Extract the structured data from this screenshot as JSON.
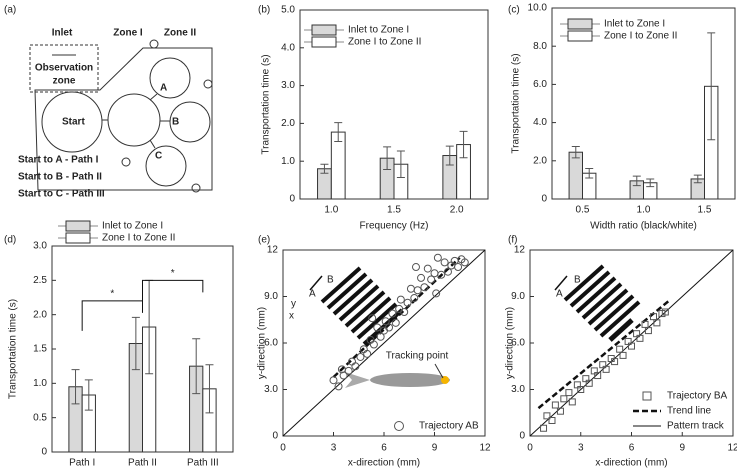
{
  "panel_labels": [
    "(a)",
    "(b)",
    "(c)",
    "(d)",
    "(e)",
    "(f)"
  ],
  "diagram": {
    "zones": [
      "Inlet",
      "Zone I",
      "Zone II"
    ],
    "observation": [
      "Observation",
      "zone"
    ],
    "start": "Start",
    "nodes": [
      "A",
      "B",
      "C"
    ],
    "paths": [
      "Start to A - Path I",
      "Start to B - Path II",
      "Start to C - Path III"
    ]
  },
  "chart_data": [
    {
      "type": "bar",
      "categories": [
        "1.0",
        "1.5",
        "2.0"
      ],
      "x_label": "Frequency (Hz)",
      "y_label": "Transportation time (s)",
      "ylim": [
        0,
        5
      ],
      "yticks": [
        0,
        {
          "value": 1,
          "label": "1.0"
        },
        {
          "value": 2,
          "label": "2.0"
        },
        {
          "value": 3,
          "label": "3.0"
        },
        {
          "value": 4,
          "label": "4.0"
        },
        {
          "value": 5,
          "label": "5.0"
        }
      ],
      "legend": "upper left",
      "series": [
        {
          "name": "Inlet to Zone I",
          "color": "#d9d9d9",
          "values": [
            0.8,
            1.08,
            1.15
          ],
          "errors": [
            0.12,
            0.3,
            0.25
          ]
        },
        {
          "name": "Zone I to Zone II",
          "color": "#ffffff",
          "values": [
            1.77,
            0.92,
            1.44
          ],
          "errors": [
            0.25,
            0.35,
            0.35
          ]
        }
      ]
    },
    {
      "type": "bar",
      "categories": [
        "0.5",
        "1.0",
        "1.5"
      ],
      "x_label": "Width ratio (black/white)",
      "y_label": "Transportation time (s)",
      "ylim": [
        0,
        10
      ],
      "yticks": [
        0,
        {
          "value": 2,
          "label": "2.0"
        },
        {
          "value": 4,
          "label": "4.0"
        },
        {
          "value": 6,
          "label": "6.0"
        },
        {
          "value": 8,
          "label": "8.0"
        },
        {
          "value": 10,
          "label": "10.0"
        }
      ],
      "legend": "upper left",
      "series": [
        {
          "name": "Inlet to Zone I",
          "color": "#d9d9d9",
          "values": [
            2.45,
            0.95,
            1.05
          ],
          "errors": [
            0.3,
            0.25,
            0.2
          ]
        },
        {
          "name": "Zone I to Zone II",
          "color": "#ffffff",
          "values": [
            1.35,
            0.85,
            5.9
          ],
          "errors": [
            0.25,
            0.2,
            2.8
          ]
        }
      ]
    },
    {
      "type": "bar",
      "categories": [
        "Path I",
        "Path II",
        "Path III"
      ],
      "y_label": "Transportation time (s)",
      "ylim": [
        0,
        3
      ],
      "yticks": [
        0,
        0.5,
        {
          "value": 1,
          "label": "1.0"
        },
        1.5,
        {
          "value": 2,
          "label": "2.0"
        },
        2.5,
        {
          "value": 3,
          "label": "3.0"
        }
      ],
      "legend": "top",
      "annotations": [
        "*",
        "*"
      ],
      "series": [
        {
          "name": "Inlet to Zone I",
          "color": "#d9d9d9",
          "values": [
            0.95,
            1.58,
            1.25
          ],
          "errors": [
            0.25,
            0.38,
            0.4
          ]
        },
        {
          "name": "Zone I to Zone II",
          "color": "#ffffff",
          "values": [
            0.83,
            1.82,
            0.92
          ],
          "errors": [
            0.22,
            0.68,
            0.35
          ]
        }
      ]
    },
    {
      "type": "scatter",
      "x_label": "x-direction (mm)",
      "y_label": "y-direction (mm)",
      "xlim": [
        0,
        12
      ],
      "ylim": [
        0,
        12
      ],
      "xticks": [
        0,
        3,
        6,
        9,
        12
      ],
      "yticks": [
        0,
        {
          "value": 3,
          "label": "3.0"
        },
        {
          "value": 6,
          "label": "6.0"
        },
        {
          "value": 9,
          "label": "9.0"
        },
        12
      ],
      "legend": "lower right",
      "annotation": "Tracking point",
      "inset_labels": [
        "A",
        "B",
        "y",
        "x"
      ],
      "series": [
        {
          "name": "Trajectory AB",
          "marker": "circle",
          "color": "#555555",
          "x": [
            3.0,
            3.3,
            3.5,
            3.6,
            3.9,
            4.1,
            4.3,
            4.6,
            4.8,
            5.0,
            5.2,
            5.4,
            5.6,
            5.8,
            6.0,
            6.1,
            6.3,
            6.5,
            6.7,
            6.9,
            7.0,
            7.2,
            7.4,
            7.6,
            7.8,
            8.0,
            8.2,
            8.4,
            8.6,
            8.8,
            9.0,
            9.2,
            9.4,
            9.6,
            9.8,
            10.0,
            10.2,
            10.4,
            10.6,
            10.8,
            5.3,
            7.9,
            9.1
          ],
          "values": [
            3.6,
            3.2,
            4.3,
            3.9,
            4.2,
            4.8,
            4.5,
            5.1,
            5.6,
            5.3,
            6.2,
            5.9,
            7.0,
            6.4,
            6.8,
            7.4,
            7.0,
            7.9,
            7.3,
            8.2,
            8.8,
            8.0,
            8.6,
            9.5,
            8.9,
            9.4,
            10.2,
            9.6,
            10.8,
            10.1,
            10.5,
            11.5,
            10.4,
            11.2,
            10.6,
            11.0,
            11.3,
            10.9,
            11.4,
            11.2,
            7.6,
            10.9,
            9.2
          ]
        }
      ],
      "lines": [
        {
          "style": "dashed",
          "x": [
            3,
            10.5
          ],
          "values": [
            3.8,
            11.5
          ]
        },
        {
          "style": "solid",
          "x": [
            0,
            12
          ],
          "values": [
            0,
            12
          ]
        }
      ]
    },
    {
      "type": "scatter",
      "x_label": "x-direction (mm)",
      "y_label": "y-direction (mm)",
      "xlim": [
        0,
        12
      ],
      "ylim": [
        0,
        12
      ],
      "xticks": [
        0,
        3,
        6,
        9,
        12
      ],
      "yticks": [
        0,
        {
          "value": 3,
          "label": "3.0"
        },
        {
          "value": 6,
          "label": "6.0"
        },
        {
          "value": 9,
          "label": "9.0"
        },
        12
      ],
      "legend": "lower right",
      "inset_labels": [
        "A",
        "B"
      ],
      "series": [
        {
          "name": "Trajectory BA",
          "marker": "square",
          "color": "#555555",
          "x": [
            0.8,
            1.0,
            1.3,
            1.5,
            1.8,
            2.0,
            2.3,
            2.5,
            2.8,
            3.0,
            3.3,
            3.5,
            3.8,
            4.0,
            4.3,
            4.5,
            4.8,
            5.0,
            5.3,
            5.5,
            5.8,
            6.0,
            6.3,
            6.5,
            6.8,
            7.0,
            7.3,
            7.5,
            7.8,
            8.0
          ],
          "values": [
            0.5,
            1.3,
            1.0,
            2.0,
            1.6,
            2.4,
            2.8,
            2.2,
            3.3,
            3.0,
            3.7,
            3.4,
            4.2,
            3.9,
            4.6,
            4.3,
            5.0,
            4.8,
            5.6,
            5.2,
            6.1,
            5.8,
            6.6,
            6.3,
            7.2,
            6.8,
            7.7,
            7.3,
            7.9,
            8.0
          ]
        }
      ],
      "lines": [
        {
          "name": "Trend line",
          "style": "dashed",
          "x": [
            0.5,
            8.3
          ],
          "values": [
            1.8,
            8.8
          ]
        },
        {
          "name": "Pattern track",
          "style": "solid",
          "x": [
            0,
            12
          ],
          "values": [
            0,
            12
          ]
        }
      ]
    }
  ]
}
